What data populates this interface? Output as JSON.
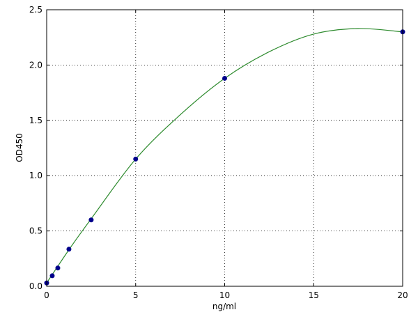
{
  "chart_data": {
    "type": "scatter",
    "title": "",
    "xlabel": "ng/ml",
    "ylabel": "OD450",
    "xlim": [
      0,
      20
    ],
    "ylim": [
      0,
      2.5
    ],
    "xticks": [
      "0",
      "5",
      "10",
      "15",
      "20"
    ],
    "yticks": [
      "0.0",
      "0.5",
      "1.0",
      "1.5",
      "2.0",
      "2.5"
    ],
    "grid": true,
    "series": [
      {
        "type": "scatter",
        "color": "#00008b",
        "x": [
          0,
          0.3125,
          0.625,
          1.25,
          2.5,
          5,
          10,
          20
        ],
        "y": [
          0.03,
          0.095,
          0.165,
          0.335,
          0.6,
          1.15,
          1.88,
          2.3
        ]
      },
      {
        "type": "line",
        "color": "#2e8b2e",
        "x": [
          0,
          1.25,
          2.5,
          5,
          7.5,
          10,
          12.5,
          15,
          17.5,
          20
        ],
        "y": [
          0.03,
          0.33,
          0.61,
          1.15,
          1.55,
          1.88,
          2.12,
          2.28,
          2.33,
          2.3
        ]
      }
    ]
  }
}
